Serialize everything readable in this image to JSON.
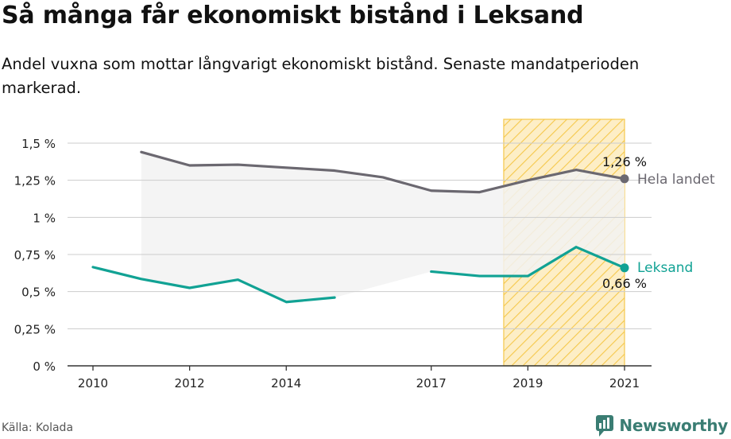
{
  "title": "Så många får ekonomiskt bistånd i Leksand",
  "subtitle": "Andel vuxna som mottar långvarigt ekonomiskt bistånd. Senaste mandatperioden markerad.",
  "source": "Källa: Kolada",
  "brand": "Newsworthy",
  "colors": {
    "national": "#6b6870",
    "local": "#11a294",
    "highlight_fill": "#fde8b4",
    "highlight_stroke": "#f5c84c",
    "range_fill": "#f2f2f2",
    "axis": "#333333",
    "grid": "#cccccc",
    "brand": "#3a7d73"
  },
  "chart_data": {
    "type": "line",
    "x_ticks": [
      2010,
      2012,
      2014,
      2017,
      2019,
      2021
    ],
    "y_ticks": [
      0,
      0.25,
      0.5,
      0.75,
      1,
      1.25,
      1.5
    ],
    "y_tick_labels": [
      "0 %",
      "0,25 %",
      "0,5 %",
      "0,75 %",
      "1 %",
      "1,25 %",
      "1,5 %"
    ],
    "xlim": [
      2010,
      2021
    ],
    "ylim": [
      0,
      1.5
    ],
    "grid": true,
    "highlight_period": [
      2018.5,
      2021
    ],
    "series": [
      {
        "name": "Hela landet",
        "x": [
          2011,
          2012,
          2013,
          2014,
          2015,
          2016,
          2017,
          2018,
          2019,
          2020,
          2021
        ],
        "values": [
          1.44,
          1.35,
          1.355,
          1.335,
          1.315,
          1.27,
          1.18,
          1.17,
          1.25,
          1.32,
          1.26
        ],
        "end_label": "1,26 %"
      },
      {
        "name": "Leksand",
        "x": [
          2010,
          2011,
          2012,
          2013,
          2014,
          2015,
          2016,
          2017,
          2018,
          2019,
          2020,
          2021
        ],
        "values": [
          0.665,
          0.585,
          0.525,
          0.58,
          0.43,
          0.46,
          null,
          0.635,
          0.605,
          0.605,
          0.8,
          0.66
        ],
        "end_label": "0,66 %"
      }
    ]
  }
}
